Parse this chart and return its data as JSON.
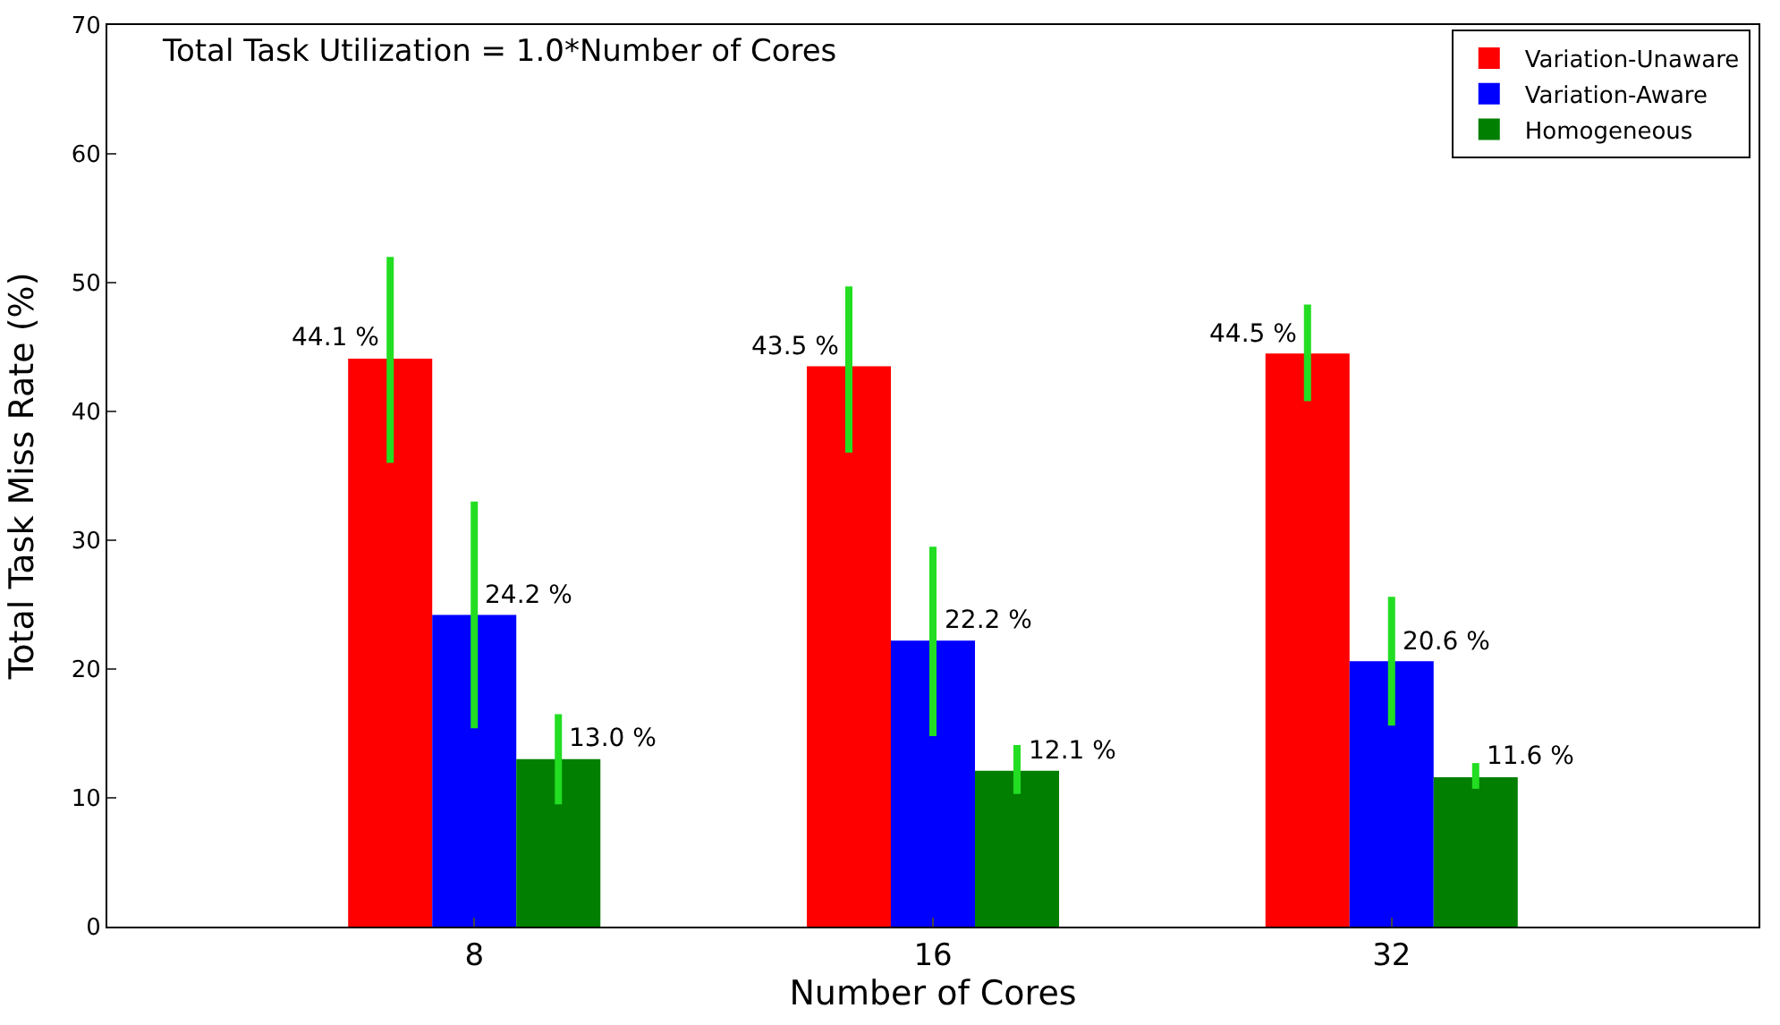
{
  "chart_data": {
    "type": "bar",
    "xlabel": "Number of Cores",
    "ylabel": "Total Task Miss Rate (%)",
    "categories": [
      "8",
      "16",
      "32"
    ],
    "series": [
      {
        "name": "Variation-Unaware",
        "color": "#ff0000",
        "values": [
          44.1,
          43.5,
          44.5
        ],
        "value_labels": [
          "44.1 %",
          "43.5 %",
          "44.5 %"
        ],
        "errors": [
          [
            36.0,
            52.0
          ],
          [
            36.8,
            49.7
          ],
          [
            40.8,
            48.3
          ]
        ]
      },
      {
        "name": "Variation-Aware",
        "color": "#0000ff",
        "values": [
          24.2,
          22.2,
          20.6
        ],
        "value_labels": [
          "24.2 %",
          "22.2 %",
          "20.6 %"
        ],
        "errors": [
          [
            15.4,
            33.0
          ],
          [
            14.8,
            29.5
          ],
          [
            15.6,
            25.6
          ]
        ]
      },
      {
        "name": "Homogeneous",
        "color": "#007f00",
        "values": [
          13.0,
          12.1,
          11.6
        ],
        "value_labels": [
          "13.0 %",
          "12.1 %",
          "11.6 %"
        ],
        "errors": [
          [
            9.5,
            16.5
          ],
          [
            10.3,
            14.1
          ],
          [
            10.7,
            12.7
          ]
        ]
      }
    ],
    "ylim": [
      0,
      70
    ],
    "yticks": [
      0,
      10,
      20,
      30,
      40,
      50,
      60,
      70
    ],
    "legend": "top right",
    "annotations": [
      "Total Task Utilization = 1.0*Number of Cores"
    ]
  }
}
